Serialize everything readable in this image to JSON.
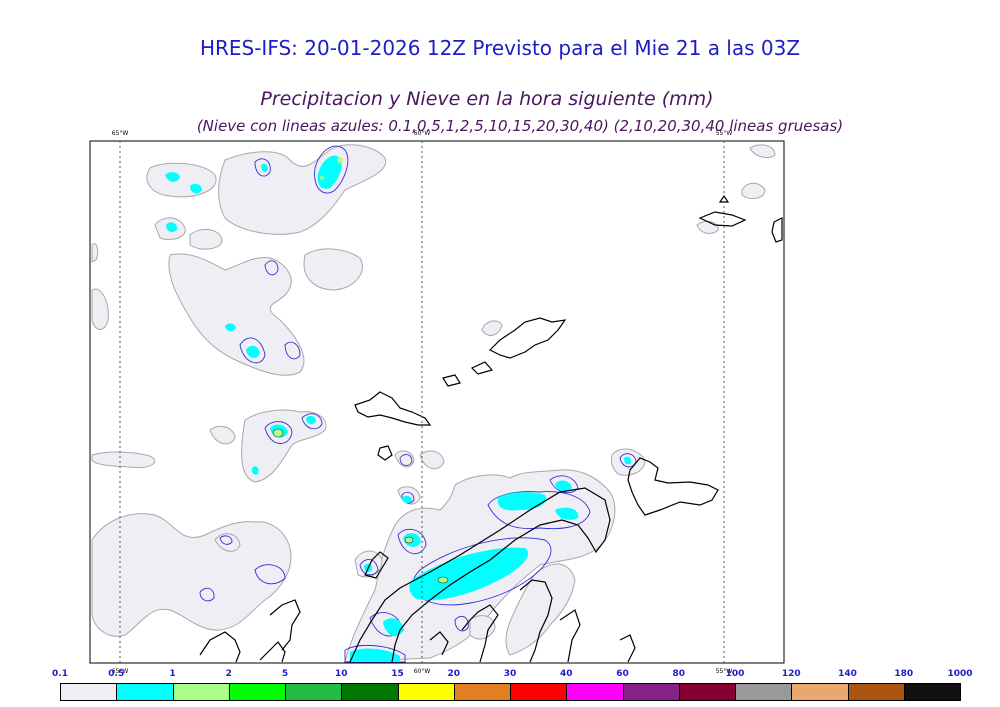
{
  "header": {
    "title": "HRES-IFS: 20-01-2026 12Z Previsto para el Mie 21 a las 03Z",
    "subtitle": "Precipitacion y Nieve en la hora siguiente (mm)",
    "note": "(Nieve con lineas azules: 0.1,0.5,1,2,5,10,15,20,30,40)  (2,10,20,30,40 lineas gruesas)"
  },
  "map": {
    "longitude_labels_top": [
      "65°W",
      "60°W",
      "55°W"
    ],
    "longitude_labels_bottom": [
      "65°W",
      "60°W",
      "55°W"
    ],
    "colors": {
      "land_precip_light": "#eeeef4",
      "precip_outline": "#a8a8a8",
      "snow_line": "#3030d8",
      "coast": "#000000",
      "cyan": "#00ffff",
      "green_light": "#aaff88"
    }
  },
  "colorbar": {
    "labels": [
      "0.1",
      "0.5",
      "1",
      "2",
      "5",
      "10",
      "15",
      "20",
      "30",
      "40",
      "60",
      "80",
      "100",
      "120",
      "140",
      "180",
      "1000"
    ],
    "colors": [
      "#eeeef4",
      "#00ffff",
      "#aaff88",
      "#00ff00",
      "#22bb44",
      "#007700",
      "#ffff00",
      "#e08020",
      "#ff0000",
      "#ff00ff",
      "#882288",
      "#880033",
      "#999999",
      "#e8a870",
      "#aa5511",
      "#111111"
    ]
  }
}
